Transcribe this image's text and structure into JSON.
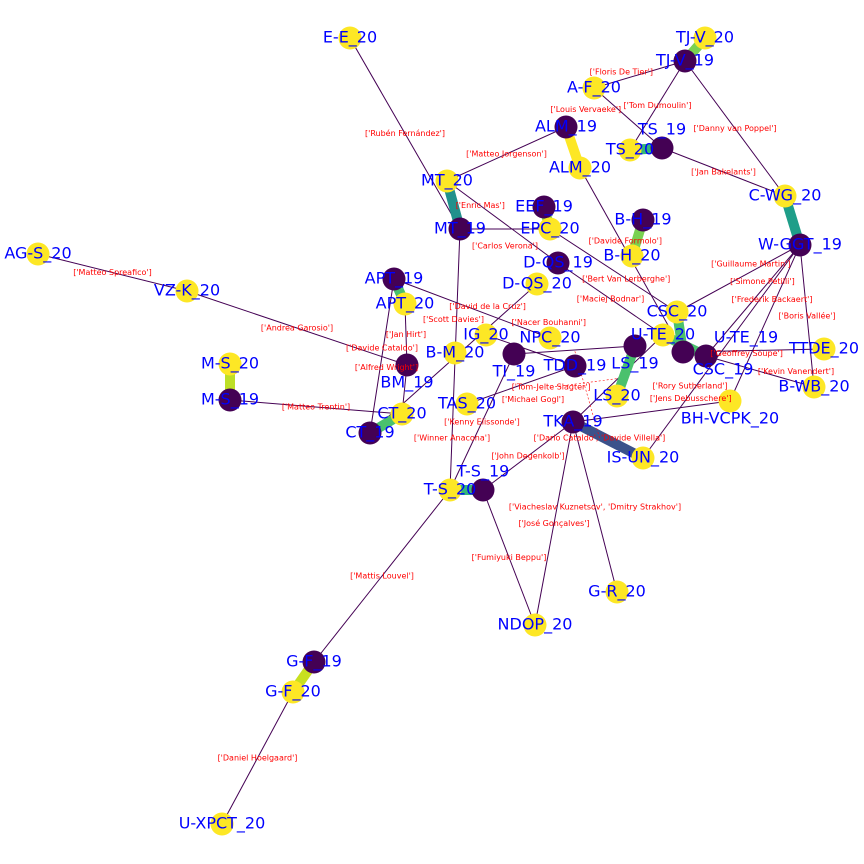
{
  "colors": {
    "team_2020": "#fde725",
    "team_2019": "#440154",
    "node_label": "#0000ff",
    "edge_label": "#ff0000",
    "thin_edge": "#440154"
  },
  "nodes": [
    {
      "id": "E-E_20",
      "group": "2020"
    },
    {
      "id": "TJ-V_20",
      "group": "2020"
    },
    {
      "id": "TJ-V_19",
      "group": "2019"
    },
    {
      "id": "A-F_20",
      "group": "2020"
    },
    {
      "id": "ALM_19",
      "group": "2019"
    },
    {
      "id": "ALM_20",
      "group": "2020"
    },
    {
      "id": "TS_20",
      "group": "2020"
    },
    {
      "id": "TS_19",
      "group": "2019"
    },
    {
      "id": "MT_20",
      "group": "2020"
    },
    {
      "id": "MT_19",
      "group": "2019"
    },
    {
      "id": "EEF_19",
      "group": "2019"
    },
    {
      "id": "EPC_20",
      "group": "2020"
    },
    {
      "id": "B-H_19",
      "group": "2019"
    },
    {
      "id": "C-WG_20",
      "group": "2020"
    },
    {
      "id": "W-GGT_19",
      "group": "2019"
    },
    {
      "id": "D-QS_19",
      "group": "2019"
    },
    {
      "id": "B-H_20",
      "group": "2020"
    },
    {
      "id": "D-QS_20",
      "group": "2020"
    },
    {
      "id": "AG-S_20",
      "group": "2020"
    },
    {
      "id": "VZ-K_20",
      "group": "2020"
    },
    {
      "id": "APT_19",
      "group": "2019"
    },
    {
      "id": "APT_20",
      "group": "2020"
    },
    {
      "id": "IG_20",
      "group": "2020"
    },
    {
      "id": "NPC_20",
      "group": "2020"
    },
    {
      "id": "CSC_20",
      "group": "2020"
    },
    {
      "id": "U-TE_20",
      "group": "2020"
    },
    {
      "id": "B-M_20",
      "group": "2020"
    },
    {
      "id": "TI_19",
      "group": "2019"
    },
    {
      "id": "BM_19",
      "group": "2019"
    },
    {
      "id": "LS_19",
      "group": "2019"
    },
    {
      "id": "CSC_19",
      "group": "2019"
    },
    {
      "id": "U-TE_19",
      "group": "2019"
    },
    {
      "id": "TTDE_20",
      "group": "2020"
    },
    {
      "id": "TDD_19",
      "group": "2019"
    },
    {
      "id": "M-S_20",
      "group": "2020"
    },
    {
      "id": "M-S_19",
      "group": "2019"
    },
    {
      "id": "B-WB_20",
      "group": "2020"
    },
    {
      "id": "LS_20",
      "group": "2020"
    },
    {
      "id": "BH-VCPK_20",
      "group": "2020"
    },
    {
      "id": "TAS_20",
      "group": "2020"
    },
    {
      "id": "CT_20",
      "group": "2020"
    },
    {
      "id": "CT_19",
      "group": "2019"
    },
    {
      "id": "TKA_19",
      "group": "2019"
    },
    {
      "id": "IS-UN_20",
      "group": "2020"
    },
    {
      "id": "T-S_20",
      "group": "2020"
    },
    {
      "id": "T-S_19",
      "group": "2019"
    },
    {
      "id": "G-R_20",
      "group": "2020"
    },
    {
      "id": "NDOP_20",
      "group": "2020"
    },
    {
      "id": "G-F_19",
      "group": "2019"
    },
    {
      "id": "G-F_20",
      "group": "2020"
    },
    {
      "id": "U-XPCT_20",
      "group": "2020"
    }
  ],
  "team_edges": [
    {
      "s": "TJ-V_20",
      "t": "TJ-V_19",
      "color": "#7ad151"
    },
    {
      "s": "TS_20",
      "t": "TS_19",
      "color": "#35b779"
    },
    {
      "s": "MT_20",
      "t": "MT_19",
      "color": "#21918c"
    },
    {
      "s": "EEF_19",
      "t": "EPC_20",
      "color": "#7ad151"
    },
    {
      "s": "C-WG_20",
      "t": "W-GGT_19",
      "color": "#1f9e89"
    },
    {
      "s": "M-S_20",
      "t": "M-S_19",
      "color": "#bddf26"
    },
    {
      "s": "TKA_19",
      "t": "IS-UN_20",
      "color": "#3b528b"
    },
    {
      "s": "T-S_20",
      "t": "T-S_19",
      "color": "#35b779"
    },
    {
      "s": "G-F_19",
      "t": "G-F_20",
      "color": "#c8e020"
    },
    {
      "s": "APT_19",
      "t": "APT_20",
      "color": "#4ac16d"
    },
    {
      "s": "CT_20",
      "t": "CT_19",
      "color": "#4ac16d"
    },
    {
      "s": "ALM_19",
      "t": "ALM_20",
      "color": "#fde725"
    },
    {
      "s": "B-H_19",
      "t": "B-H_20",
      "color": "#7ad151"
    },
    {
      "s": "CSC_20",
      "t": "CSC_19",
      "color": "#4ac16d"
    },
    {
      "s": "U-TE_20",
      "t": "U-TE_19",
      "color": "#4ac16d"
    },
    {
      "s": "LS_19",
      "t": "LS_20",
      "color": "#4ac16d"
    }
  ],
  "edges": [
    {
      "s": "E-E_20",
      "t": "MT_19",
      "label": "['Rubén Fernández']"
    },
    {
      "s": "AG-S_20",
      "t": "VZ-K_20",
      "label": "['Matteo Spreafico']"
    },
    {
      "s": "VZ-K_20",
      "t": "BM_19",
      "label": "['Andrea Garosio']"
    },
    {
      "s": "M-S_19",
      "t": "CT_20",
      "label": "['Matteo Trentin']"
    },
    {
      "s": "G-F_19",
      "t": "T-S_20",
      "label": "['Mattis Louvel']"
    },
    {
      "s": "G-F_20",
      "t": "U-XPCT_20",
      "label": "['Daniel Hoelgaard']"
    },
    {
      "s": "T-S_19",
      "t": "NDOP_20",
      "label": "['Fumiyuki Beppu']"
    },
    {
      "s": "TKA_19",
      "t": "NDOP_20",
      "label": "['José Gonçalves']"
    },
    {
      "s": "TKA_19",
      "t": "G-R_20",
      "label": "['Viacheslav Kuznetsov', 'Dmitry Strakhov']"
    },
    {
      "s": "T-S_19",
      "t": "TKA_19",
      "label": "['John Degenkolb']"
    },
    {
      "s": "TJ-V_19",
      "t": "C-WG_20",
      "label": "['Danny van Poppel']"
    },
    {
      "s": "TS_19",
      "t": "C-WG_20",
      "label": "['Jan Bakelants']"
    },
    {
      "s": "A-F_20",
      "t": "TJ-V_19",
      "label": "['Floris De Tier']"
    },
    {
      "s": "ALM_19",
      "t": "MT_20",
      "label": "['Matteo Jorgenson']"
    },
    {
      "s": "MT_20",
      "t": "D-QS_19",
      "label": "['Enric Mas']"
    },
    {
      "s": "TJ-V_19",
      "t": "TS_20",
      "label": "['Tom Dumoulin']"
    },
    {
      "s": "A-F_20",
      "t": "TS_19",
      "label": "['Louis Vervaeke']"
    },
    {
      "s": "W-GGT_19",
      "t": "B-WB_20",
      "label": "['Boris Vallée']"
    },
    {
      "s": "W-GGT_19",
      "t": "BH-VCPK_20",
      "label": "['Frederik Backaert']"
    },
    {
      "s": "W-GGT_19",
      "t": "U-TE_19",
      "label": "['Simone Petilli']"
    },
    {
      "s": "TTDE_20",
      "t": "CSC_19",
      "label": "['Geoffrey Soupe']"
    },
    {
      "s": "TKA_19",
      "t": "BH-VCPK_20",
      "label": "['Jens Debusschere']"
    },
    {
      "s": "TKA_19",
      "t": "U-TE_20",
      "label": "['Tom-Jelte Slagter']"
    },
    {
      "s": "TDD_19",
      "t": "IG_20",
      "label": "['Nacer Bouhanni']"
    },
    {
      "s": "TAS_20",
      "t": "TDD_19",
      "label": "['Michael Gogl']"
    },
    {
      "s": "T-S_20",
      "t": "TI_19",
      "label": "['Kenny Elissonde']"
    },
    {
      "s": "APT_19",
      "t": "NPC_20",
      "label": "['David de la Cruz']"
    },
    {
      "s": "APT_20",
      "t": "BM_19",
      "label": "['Jan Hirt']"
    },
    {
      "s": "MT_19",
      "t": "T-S_20",
      "label": "['Winner Anacona']"
    },
    {
      "s": "BM_19",
      "t": "CT_20",
      "label": "['Alfred Wright']"
    },
    {
      "s": "CT_19",
      "t": "D-QS_20",
      "label": "['Scott Davies']"
    },
    {
      "s": "EPC_20",
      "t": "CSC_20",
      "label": "['Bert Van Lerberghe']"
    },
    {
      "s": "D-QS_19",
      "t": "U-TE_20",
      "label": "['Maciej Bodnar']"
    },
    {
      "s": "ALM_20",
      "t": "CSC_19",
      "label": "['Davide Formolo']"
    },
    {
      "s": "IS-UN_20",
      "t": "W-GGT_19",
      "label": "['Rory Sutherland']"
    },
    {
      "s": "CSC_20",
      "t": "W-GGT_19",
      "label": "['Guillaume Martin']"
    },
    {
      "s": "U-TE_19",
      "t": "B-WB_20",
      "label": "['Kevin Vanendert']"
    },
    {
      "s": "APT_19",
      "t": "CT_19",
      "label": "['Davide Cataldo']"
    },
    {
      "s": "MT_19",
      "t": "EPC_20",
      "label": "['Carlos Verona']"
    },
    {
      "s": "TI_19",
      "t": "LS_19",
      "label": "['Dario Cataldo', 'Davide Villella']"
    }
  ]
}
